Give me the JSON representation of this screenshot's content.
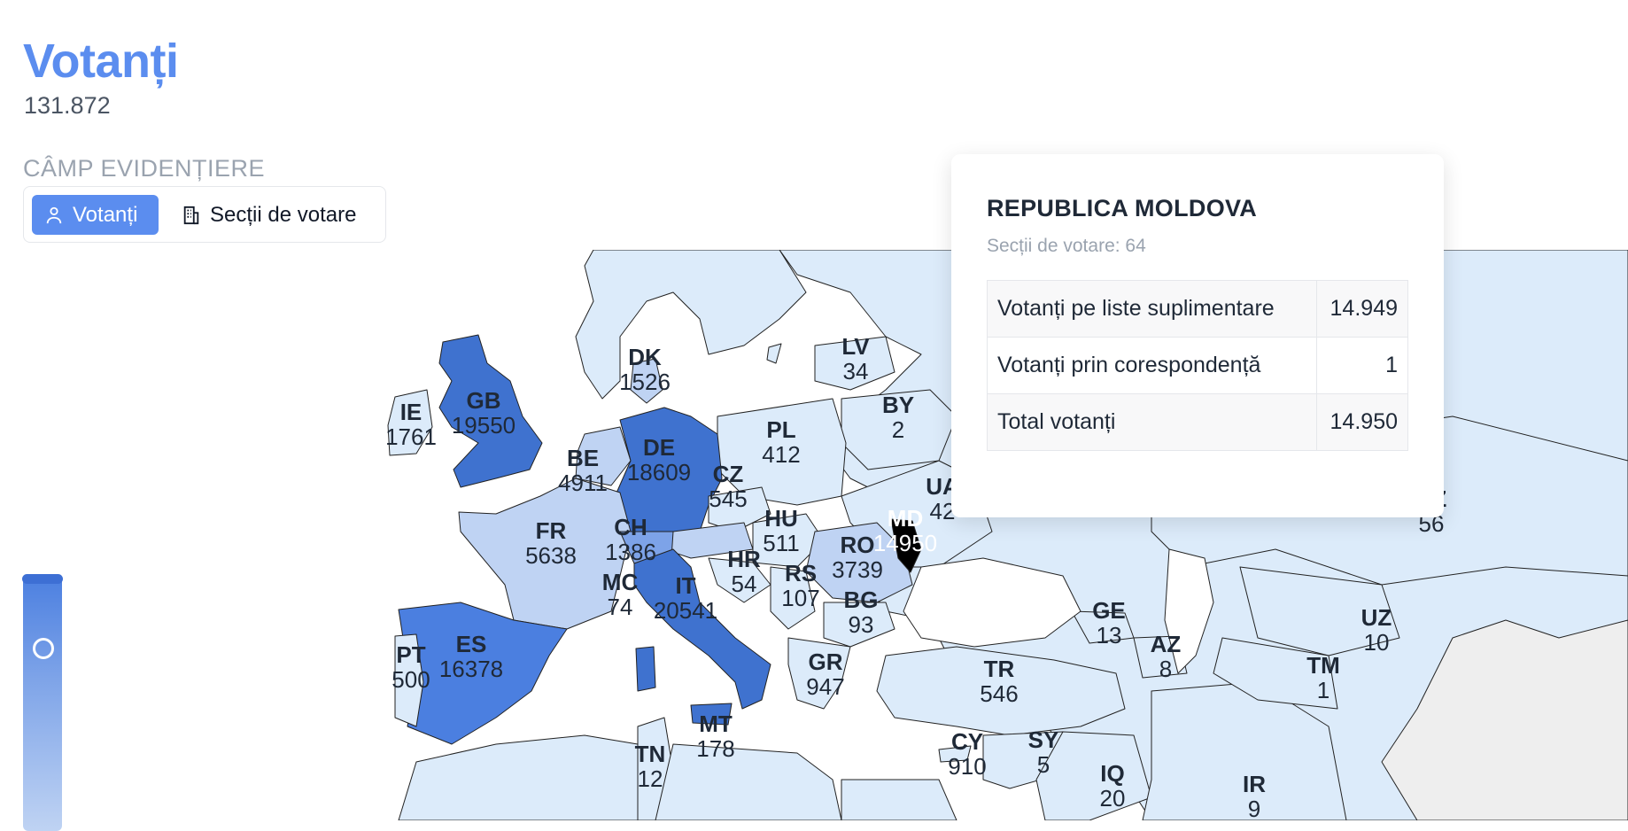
{
  "header": {
    "title": "Votanți",
    "total": "131.872"
  },
  "highlight": {
    "label": "CÂMP EVIDENȚIERE",
    "options": [
      "Votanți",
      "Secții de votare"
    ],
    "selected": "Votanți"
  },
  "colors": {
    "accent": "#5b8def",
    "dark": "#3d6fd4",
    "mid": "#7da3e8",
    "light": "#bfd3f3",
    "lightest": "#dcebfa",
    "selected_country": "#000000"
  },
  "tooltip": {
    "country": "REPUBLICA MOLDOVA",
    "sections": "Secții de votare: 64",
    "rows": [
      {
        "label": "Votanți pe liste suplimentare",
        "value": "14.949"
      },
      {
        "label": "Votanți prin corespondență",
        "value": "1"
      },
      {
        "label": "Total votanți",
        "value": "14.950"
      }
    ]
  },
  "map_labels": [
    {
      "code": "IE",
      "value": "1761"
    },
    {
      "code": "GB",
      "value": "19550"
    },
    {
      "code": "DK",
      "value": "1526"
    },
    {
      "code": "LV",
      "value": "34"
    },
    {
      "code": "BY",
      "value": "2"
    },
    {
      "code": "PL",
      "value": "412"
    },
    {
      "code": "BE",
      "value": "4911"
    },
    {
      "code": "DE",
      "value": "18609"
    },
    {
      "code": "CZ",
      "value": "545"
    },
    {
      "code": "UA",
      "value": "42"
    },
    {
      "code": "FR",
      "value": "5638"
    },
    {
      "code": "CH",
      "value": "1386"
    },
    {
      "code": "HU",
      "value": "511"
    },
    {
      "code": "MD",
      "value": "14950"
    },
    {
      "code": "RO",
      "value": "3739"
    },
    {
      "code": "HR",
      "value": "54"
    },
    {
      "code": "RS",
      "value": "107"
    },
    {
      "code": "MC",
      "value": "74"
    },
    {
      "code": "IT",
      "value": "20541"
    },
    {
      "code": "BG",
      "value": "93"
    },
    {
      "code": "KZ",
      "value": "56"
    },
    {
      "code": "GE",
      "value": "13"
    },
    {
      "code": "AZ",
      "value": "8"
    },
    {
      "code": "UZ",
      "value": "10"
    },
    {
      "code": "TM",
      "value": "1"
    },
    {
      "code": "PT",
      "value": "500"
    },
    {
      "code": "ES",
      "value": "16378"
    },
    {
      "code": "GR",
      "value": "947"
    },
    {
      "code": "TR",
      "value": "546"
    },
    {
      "code": "MT",
      "value": "178"
    },
    {
      "code": "TN",
      "value": "12"
    },
    {
      "code": "CY",
      "value": "910"
    },
    {
      "code": "SY",
      "value": "5"
    },
    {
      "code": "IQ",
      "value": "20"
    },
    {
      "code": "IR",
      "value": "9"
    }
  ]
}
